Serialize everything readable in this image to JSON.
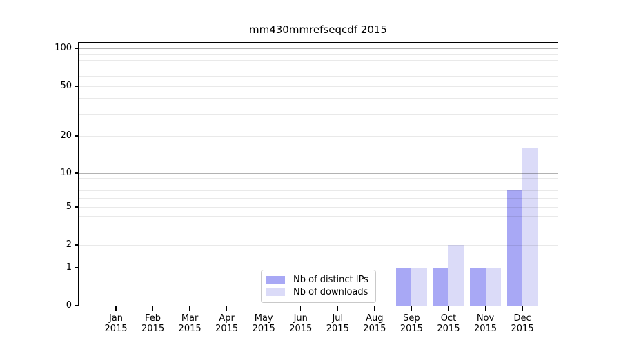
{
  "chart_data": {
    "type": "bar",
    "title": "mm430mmrefseqcdf 2015",
    "x_tick_months": [
      "Jan",
      "Feb",
      "Mar",
      "Apr",
      "May",
      "Jun",
      "Jul",
      "Aug",
      "Sep",
      "Oct",
      "Nov",
      "Dec"
    ],
    "x_tick_year": "2015",
    "series": [
      {
        "name": "Nb of distinct IPs",
        "color": "#a8a8f5",
        "values": [
          0,
          0,
          0,
          0,
          0,
          0,
          0,
          0,
          1,
          1,
          1,
          7
        ]
      },
      {
        "name": "Nb of downloads",
        "color": "#dbdbf8",
        "values": [
          0,
          0,
          0,
          0,
          0,
          0,
          0,
          0,
          1,
          2,
          1,
          16
        ]
      }
    ],
    "y_axis": {
      "scale": "log-like, 0 baseline",
      "ticks": [
        0,
        1,
        2,
        5,
        10,
        20,
        50,
        100
      ],
      "decade_gridlines": [
        1,
        10,
        100
      ],
      "minor_gridlines": [
        2,
        3,
        4,
        5,
        6,
        7,
        8,
        9,
        20,
        30,
        40,
        50,
        60,
        70,
        80,
        90
      ],
      "ylim": [
        0,
        112
      ]
    },
    "legend": {
      "position": "lower center"
    },
    "grid": true,
    "colors": {
      "decade_gridline": "rgba(0,0,0,0.30)",
      "minor_gridline": "rgba(0,0,0,0.085)",
      "spine": "#000000",
      "legend_border": "#c9c9c9",
      "text": "#000000",
      "background": "#ffffff"
    }
  }
}
